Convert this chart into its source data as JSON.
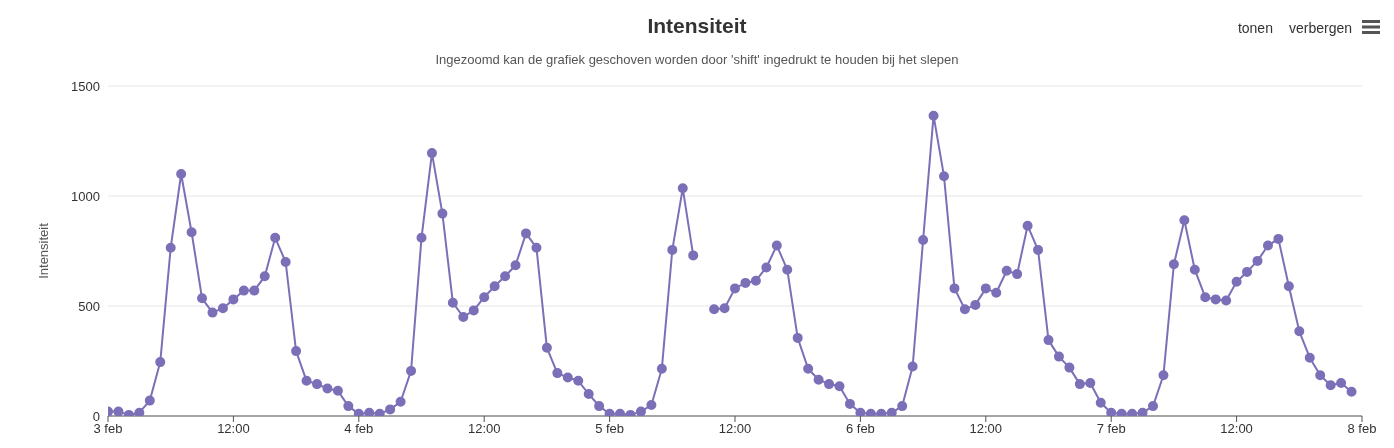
{
  "chart_data": {
    "type": "line",
    "title": "Intensiteit",
    "subtitle": "Ingezoomd kan de grafiek geschoven worden door 'shift' ingedrukt te houden bij het slepen",
    "ylabel": "Intensiteit",
    "annotations": [
      "tonen",
      "verbergen"
    ],
    "x": [
      "--02-03T00:00",
      "--02-03T01:00",
      "--02-03T02:00",
      "--02-03T03:00",
      "--02-03T04:00",
      "--02-03T05:00",
      "--02-03T06:00",
      "--02-03T07:00",
      "--02-03T08:00",
      "--02-03T09:00",
      "--02-03T10:00",
      "--02-03T11:00",
      "--02-03T12:00",
      "--02-03T13:00",
      "--02-03T14:00",
      "--02-03T15:00",
      "--02-03T16:00",
      "--02-03T17:00",
      "--02-03T18:00",
      "--02-03T19:00",
      "--02-03T20:00",
      "--02-03T21:00",
      "--02-03T22:00",
      "--02-03T23:00",
      "--02-04T00:00",
      "--02-04T01:00",
      "--02-04T02:00",
      "--02-04T03:00",
      "--02-04T04:00",
      "--02-04T05:00",
      "--02-04T06:00",
      "--02-04T07:00",
      "--02-04T08:00",
      "--02-04T09:00",
      "--02-04T10:00",
      "--02-04T11:00",
      "--02-04T12:00",
      "--02-04T13:00",
      "--02-04T14:00",
      "--02-04T15:00",
      "--02-04T16:00",
      "--02-04T17:00",
      "--02-04T18:00",
      "--02-04T19:00",
      "--02-04T20:00",
      "--02-04T21:00",
      "--02-04T22:00",
      "--02-04T23:00",
      "--02-05T00:00",
      "--02-05T01:00",
      "--02-05T02:00",
      "--02-05T03:00",
      "--02-05T04:00",
      "--02-05T05:00",
      "--02-05T06:00",
      "--02-05T07:00",
      "--02-05T08:00",
      "--02-05T09:00",
      "--02-05T10:00",
      "--02-05T11:00",
      "--02-05T12:00",
      "--02-05T13:00",
      "--02-05T14:00",
      "--02-05T15:00",
      "--02-05T16:00",
      "--02-05T17:00",
      "--02-05T18:00",
      "--02-05T19:00",
      "--02-05T20:00",
      "--02-05T21:00",
      "--02-05T22:00",
      "--02-05T23:00",
      "--02-06T00:00",
      "--02-06T01:00",
      "--02-06T02:00",
      "--02-06T03:00",
      "--02-06T04:00",
      "--02-06T05:00",
      "--02-06T06:00",
      "--02-06T07:00",
      "--02-06T08:00",
      "--02-06T09:00",
      "--02-06T10:00",
      "--02-06T11:00",
      "--02-06T12:00",
      "--02-06T13:00",
      "--02-06T14:00",
      "--02-06T15:00",
      "--02-06T16:00",
      "--02-06T17:00",
      "--02-06T18:00",
      "--02-06T19:00",
      "--02-06T20:00",
      "--02-06T21:00",
      "--02-06T22:00",
      "--02-06T23:00",
      "--02-07T00:00",
      "--02-07T01:00",
      "--02-07T02:00",
      "--02-07T03:00",
      "--02-07T04:00",
      "--02-07T05:00",
      "--02-07T06:00",
      "--02-07T07:00",
      "--02-07T08:00",
      "--02-07T09:00",
      "--02-07T10:00",
      "--02-07T11:00",
      "--02-07T12:00",
      "--02-07T13:00",
      "--02-07T14:00",
      "--02-07T15:00",
      "--02-07T16:00",
      "--02-07T17:00",
      "--02-07T18:00",
      "--02-07T19:00",
      "--02-07T20:00",
      "--02-07T21:00",
      "--02-07T22:00",
      "--02-07T23:00"
    ],
    "series": [
      {
        "color": "#7b70b8",
        "values": [
          20,
          20,
          5,
          15,
          70,
          245,
          765,
          1100,
          835,
          535,
          470,
          490,
          530,
          570,
          570,
          635,
          810,
          700,
          295,
          160,
          145,
          125,
          115,
          45,
          10,
          15,
          10,
          30,
          65,
          205,
          810,
          1195,
          920,
          515,
          450,
          480,
          540,
          590,
          635,
          685,
          830,
          765,
          310,
          195,
          175,
          160,
          100,
          45,
          10,
          10,
          5,
          20,
          50,
          215,
          755,
          1035,
          730,
          null,
          485,
          490,
          580,
          605,
          615,
          675,
          775,
          665,
          355,
          215,
          165,
          145,
          135,
          55,
          15,
          10,
          10,
          15,
          45,
          225,
          800,
          1365,
          1090,
          580,
          485,
          505,
          580,
          560,
          660,
          645,
          865,
          755,
          345,
          270,
          220,
          145,
          150,
          60,
          15,
          10,
          10,
          15,
          45,
          185,
          690,
          890,
          665,
          540,
          530,
          525,
          610,
          655,
          705,
          775,
          805,
          590,
          385,
          265,
          185,
          140,
          150,
          110
        ]
      }
    ],
    "xlim": [
      "--02-03T00:00",
      "--02-08T00:00"
    ],
    "xticks": [
      {
        "value": "--02-03T00:00",
        "label": "3 feb"
      },
      {
        "value": "--02-03T12:00",
        "label": "12:00"
      },
      {
        "value": "--02-04T00:00",
        "label": "4 feb"
      },
      {
        "value": "--02-04T12:00",
        "label": "12:00"
      },
      {
        "value": "--02-05T00:00",
        "label": "5 feb"
      },
      {
        "value": "--02-05T12:00",
        "label": "12:00"
      },
      {
        "value": "--02-06T00:00",
        "label": "6 feb"
      },
      {
        "value": "--02-06T12:00",
        "label": "12:00"
      },
      {
        "value": "--02-07T00:00",
        "label": "7 feb"
      },
      {
        "value": "--02-07T12:00",
        "label": "12:00"
      },
      {
        "value": "--02-08T00:00",
        "label": "8 feb"
      }
    ],
    "ylim": [
      0,
      1500
    ],
    "yticks": [
      0,
      500,
      1000,
      1500
    ],
    "grid": "y",
    "marker": "circle"
  }
}
